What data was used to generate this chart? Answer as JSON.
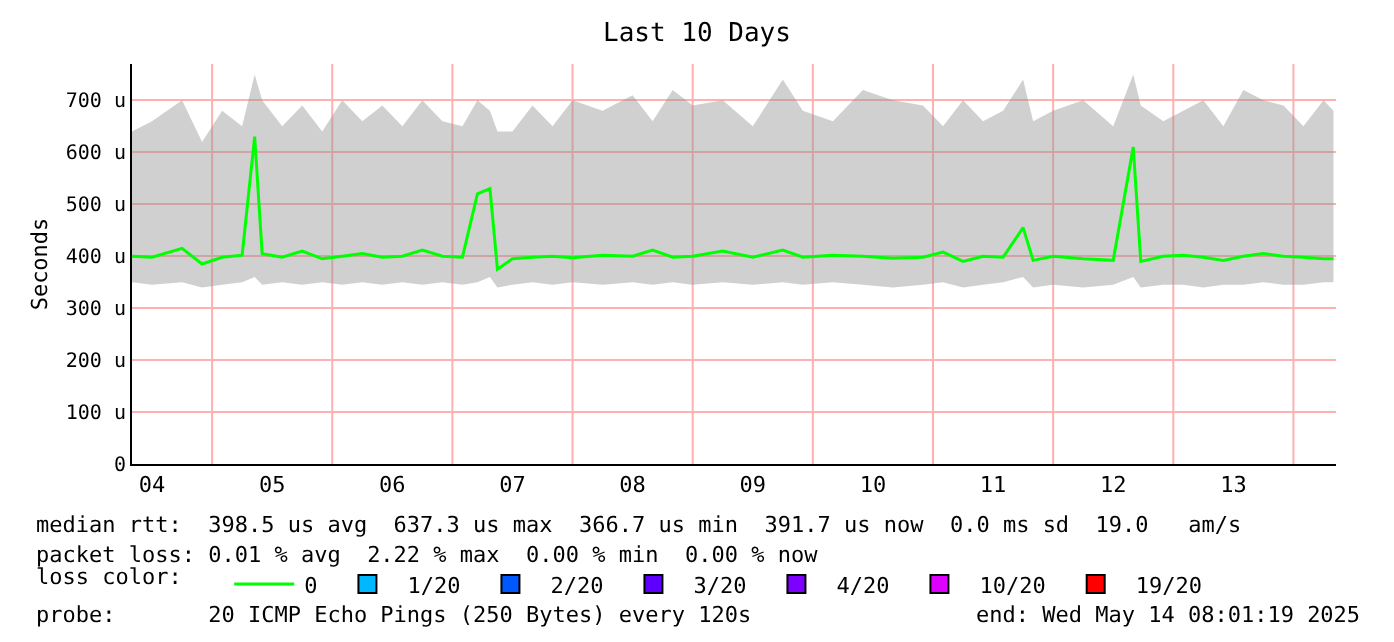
{
  "chart_data": {
    "type": "line",
    "title": "Last 10 Days",
    "ylabel": "Seconds",
    "legend_title": "loss color:",
    "x": [
      "2025-05-04T08:00",
      "2025-05-04T12:00",
      "2025-05-04T18:00",
      "2025-05-04T22:00",
      "2025-05-05T02:00",
      "2025-05-05T06:00",
      "2025-05-05T08:30",
      "2025-05-05T10:00",
      "2025-05-05T14:00",
      "2025-05-05T18:00",
      "2025-05-05T22:00",
      "2025-05-06T02:00",
      "2025-05-06T06:00",
      "2025-05-06T10:00",
      "2025-05-06T14:00",
      "2025-05-06T18:00",
      "2025-05-06T22:00",
      "2025-05-07T02:00",
      "2025-05-07T05:00",
      "2025-05-07T07:30",
      "2025-05-07T09:00",
      "2025-05-07T12:00",
      "2025-05-07T16:00",
      "2025-05-07T20:00",
      "2025-05-08T00:00",
      "2025-05-08T06:00",
      "2025-05-08T12:00",
      "2025-05-08T16:00",
      "2025-05-08T20:00",
      "2025-05-09T00:00",
      "2025-05-09T06:00",
      "2025-05-09T12:00",
      "2025-05-09T18:00",
      "2025-05-09T22:00",
      "2025-05-10T04:00",
      "2025-05-10T10:00",
      "2025-05-10T16:00",
      "2025-05-10T22:00",
      "2025-05-11T02:00",
      "2025-05-11T06:00",
      "2025-05-11T10:00",
      "2025-05-11T14:00",
      "2025-05-11T18:00",
      "2025-05-11T20:00",
      "2025-05-12T00:00",
      "2025-05-12T06:00",
      "2025-05-12T12:00",
      "2025-05-12T16:00",
      "2025-05-12T17:30",
      "2025-05-12T22:00",
      "2025-05-13T02:00",
      "2025-05-13T06:00",
      "2025-05-13T10:00",
      "2025-05-13T14:00",
      "2025-05-13T18:00",
      "2025-05-13T22:00",
      "2025-05-14T02:00",
      "2025-05-14T06:00",
      "2025-05-14T08:00"
    ],
    "series": [
      {
        "name": "0",
        "color": "#00ff00",
        "values": [
          400,
          398,
          415,
          385,
          398,
          402,
          630,
          405,
          398,
          410,
          395,
          400,
          405,
          398,
          400,
          412,
          400,
          398,
          520,
          530,
          375,
          395,
          398,
          400,
          397,
          402,
          400,
          412,
          398,
          400,
          410,
          398,
          412,
          398,
          402,
          400,
          396,
          398,
          408,
          390,
          400,
          398,
          455,
          392,
          400,
          395,
          392,
          610,
          390,
          400,
          402,
          398,
          392,
          400,
          405,
          400,
          398,
          395,
          395
        ],
        "lower": [
          350,
          345,
          350,
          340,
          345,
          350,
          360,
          345,
          350,
          345,
          350,
          345,
          350,
          345,
          350,
          345,
          350,
          345,
          350,
          360,
          340,
          345,
          350,
          345,
          350,
          345,
          350,
          345,
          350,
          345,
          350,
          345,
          350,
          345,
          350,
          345,
          340,
          345,
          350,
          340,
          345,
          350,
          360,
          340,
          345,
          340,
          345,
          360,
          340,
          345,
          345,
          340,
          345,
          345,
          350,
          345,
          345,
          350,
          350
        ],
        "upper": [
          640,
          660,
          700,
          620,
          680,
          650,
          750,
          700,
          650,
          690,
          640,
          700,
          660,
          690,
          650,
          700,
          660,
          650,
          700,
          680,
          640,
          640,
          690,
          650,
          700,
          680,
          710,
          660,
          720,
          690,
          700,
          650,
          740,
          680,
          660,
          720,
          700,
          690,
          650,
          700,
          660,
          680,
          740,
          660,
          680,
          700,
          650,
          750,
          690,
          660,
          680,
          700,
          650,
          720,
          700,
          690,
          650,
          700,
          680
        ]
      },
      {
        "name": "1/20",
        "color": "#00b8ff",
        "type": "scatter",
        "values": [
          null,
          null,
          null,
          null,
          null,
          null,
          null,
          null,
          null,
          null,
          null,
          null,
          null,
          null,
          null,
          null,
          null,
          null,
          null,
          null,
          null,
          null,
          null,
          null,
          null,
          null,
          null,
          null,
          null,
          null,
          null,
          null,
          null,
          null,
          null,
          null,
          null,
          null,
          null,
          null,
          null,
          null,
          null,
          null,
          null,
          null,
          null,
          null,
          null,
          null,
          null,
          null,
          null,
          null,
          null,
          null,
          null,
          null,
          null
        ]
      },
      {
        "name": "2/20",
        "color": "#0059ff",
        "type": "scatter",
        "values": [
          null,
          null,
          null,
          null,
          null,
          null,
          null,
          null,
          null,
          null,
          null,
          null,
          null,
          null,
          null,
          null,
          null,
          null,
          null,
          null,
          null,
          null,
          null,
          null,
          null,
          null,
          null,
          null,
          null,
          null,
          null,
          null,
          null,
          null,
          null,
          null,
          null,
          null,
          null,
          null,
          null,
          null,
          null,
          null,
          null,
          null,
          null,
          null,
          null,
          null,
          null,
          null,
          null,
          null,
          null,
          null,
          null,
          null,
          null
        ]
      },
      {
        "name": "3/20",
        "color": "#5e00ff",
        "type": "scatter",
        "values": [
          null,
          null,
          null,
          null,
          null,
          null,
          null,
          null,
          null,
          null,
          null,
          null,
          null,
          null,
          null,
          null,
          null,
          null,
          null,
          null,
          null,
          null,
          null,
          null,
          null,
          null,
          null,
          null,
          null,
          null,
          null,
          null,
          null,
          null,
          null,
          null,
          null,
          null,
          null,
          null,
          null,
          null,
          null,
          null,
          null,
          null,
          null,
          null,
          null,
          null,
          null,
          null,
          null,
          null,
          null,
          null,
          null,
          null,
          null
        ]
      },
      {
        "name": "4/20",
        "color": "#7e00ff",
        "type": "scatter",
        "values": [
          null,
          null,
          null,
          null,
          null,
          null,
          null,
          null,
          null,
          null,
          null,
          null,
          null,
          null,
          null,
          null,
          null,
          null,
          null,
          null,
          null,
          null,
          null,
          null,
          null,
          null,
          null,
          null,
          null,
          null,
          null,
          null,
          null,
          null,
          null,
          null,
          null,
          null,
          null,
          null,
          null,
          null,
          null,
          null,
          null,
          null,
          null,
          null,
          null,
          null,
          null,
          null,
          null,
          null,
          null,
          null,
          null,
          null,
          null
        ]
      },
      {
        "name": "10/20",
        "color": "#dd00ff",
        "type": "scatter",
        "values": [
          null,
          null,
          null,
          null,
          null,
          null,
          null,
          null,
          null,
          null,
          null,
          null,
          null,
          null,
          null,
          null,
          null,
          null,
          null,
          null,
          null,
          null,
          null,
          null,
          null,
          null,
          null,
          null,
          null,
          null,
          null,
          null,
          null,
          null,
          null,
          null,
          null,
          null,
          null,
          null,
          null,
          null,
          null,
          null,
          null,
          null,
          null,
          null,
          null,
          null,
          null,
          null,
          null,
          null,
          null,
          null,
          null,
          null,
          null
        ]
      },
      {
        "name": "19/20",
        "color": "#ff0000",
        "type": "scatter",
        "values": [
          null,
          null,
          null,
          null,
          null,
          null,
          null,
          null,
          null,
          null,
          null,
          null,
          null,
          null,
          null,
          null,
          null,
          null,
          null,
          null,
          null,
          null,
          null,
          null,
          null,
          null,
          null,
          null,
          null,
          null,
          null,
          null,
          null,
          null,
          null,
          null,
          null,
          null,
          null,
          null,
          null,
          null,
          null,
          null,
          null,
          null,
          null,
          null,
          null,
          null,
          null,
          null,
          null,
          null,
          null,
          null,
          null,
          null,
          null
        ]
      }
    ],
    "xlim": [
      "2025-05-04T08:00",
      "2025-05-14T08:30"
    ],
    "xticks": [
      {
        "value": "2025-05-04T12:00",
        "label": "04"
      },
      {
        "value": "2025-05-05T12:00",
        "label": "05"
      },
      {
        "value": "2025-05-06T12:00",
        "label": "06"
      },
      {
        "value": "2025-05-07T12:00",
        "label": "07"
      },
      {
        "value": "2025-05-08T12:00",
        "label": "08"
      },
      {
        "value": "2025-05-09T12:00",
        "label": "09"
      },
      {
        "value": "2025-05-10T12:00",
        "label": "10"
      },
      {
        "value": "2025-05-11T12:00",
        "label": "11"
      },
      {
        "value": "2025-05-12T12:00",
        "label": "12"
      },
      {
        "value": "2025-05-13T12:00",
        "label": "13"
      }
    ],
    "ylim": [
      0,
      770
    ],
    "yticks": [
      0,
      {
        "value": 100,
        "label": "100 u"
      },
      {
        "value": 200,
        "label": "200 u"
      },
      {
        "value": 300,
        "label": "300 u"
      },
      {
        "value": 400,
        "label": "400 u"
      },
      {
        "value": 500,
        "label": "500 u"
      },
      {
        "value": 600,
        "label": "600 u"
      },
      {
        "value": 700,
        "label": "700 u"
      }
    ],
    "grid": "y",
    "ref_lines": [
      {
        "axis": "x",
        "value": "2025-05-05T00:00",
        "color": "#ffb0b0"
      },
      {
        "axis": "x",
        "value": "2025-05-06T00:00",
        "color": "#ffb0b0"
      },
      {
        "axis": "x",
        "value": "2025-05-07T00:00",
        "color": "#ffb0b0"
      },
      {
        "axis": "x",
        "value": "2025-05-08T00:00",
        "color": "#ffb0b0"
      },
      {
        "axis": "x",
        "value": "2025-05-09T00:00",
        "color": "#ffb0b0"
      },
      {
        "axis": "x",
        "value": "2025-05-10T00:00",
        "color": "#ffb0b0"
      },
      {
        "axis": "x",
        "value": "2025-05-11T00:00",
        "color": "#ffb0b0"
      },
      {
        "axis": "x",
        "value": "2025-05-12T00:00",
        "color": "#ffb0b0"
      },
      {
        "axis": "x",
        "value": "2025-05-13T00:00",
        "color": "#ffb0b0"
      },
      {
        "axis": "x",
        "value": "2025-05-14T00:00",
        "color": "#ffb0b0"
      }
    ],
    "legend": "bottom",
    "annotations": [
      "median rtt:  398.5 us avg  637.3 us max  366.7 us min  391.7 us now  0.0 ms sd  19.0   am/s",
      "packet loss: 0.01 % avg  2.22 % max  0.00 % min  0.00 % now",
      "probe:       20 ICMP Echo Pings (250 Bytes) every 120s",
      "end: Wed May 14 08:01:19 2025"
    ]
  }
}
